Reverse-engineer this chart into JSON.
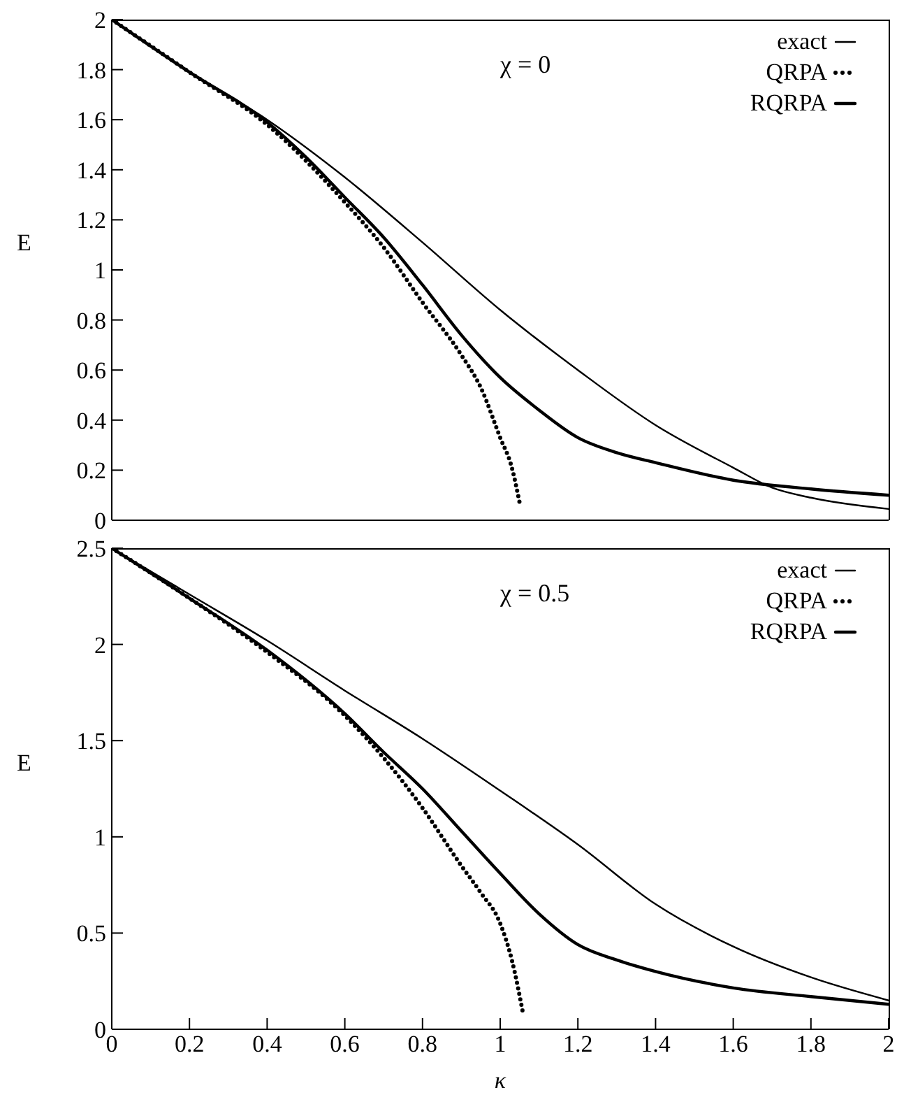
{
  "chart_data": [
    {
      "type": "line",
      "ylabel": "E",
      "annotations": [
        "χ = 0"
      ],
      "xlim": [
        0,
        2
      ],
      "xticks": [
        0,
        0.2,
        0.4,
        0.6,
        0.8,
        1,
        1.2,
        1.4,
        1.6,
        1.8,
        2
      ],
      "ylim": [
        0,
        2
      ],
      "yticks": [
        0,
        0.2,
        0.4,
        0.6,
        0.8,
        1,
        1.2,
        1.4,
        1.6,
        1.8,
        2
      ],
      "tick_labels": "y",
      "legend": "top right",
      "series": [
        {
          "name": "exact",
          "color": "#000000",
          "line_style": "solid",
          "x": [
            0,
            0.2,
            0.4,
            0.6,
            0.8,
            1,
            1.2,
            1.4,
            1.6,
            1.7,
            1.8,
            2
          ],
          "values": [
            2,
            1.79,
            1.6,
            1.37,
            1.11,
            0.84,
            0.6,
            0.38,
            0.21,
            0.13,
            0.09,
            0.045
          ]
        },
        {
          "name": "QRPA",
          "color": "#000000",
          "line_style": "dotted",
          "x": [
            0,
            0.2,
            0.4,
            0.6,
            0.7,
            0.8,
            0.9,
            0.95,
            1,
            1.03,
            1.05
          ],
          "values": [
            2,
            1.79,
            1.58,
            1.27,
            1.09,
            0.87,
            0.66,
            0.53,
            0.33,
            0.21,
            0.07
          ]
        },
        {
          "name": "RQRPA",
          "color": "#000000",
          "line_style": "solid",
          "x": [
            0,
            0.2,
            0.4,
            0.5,
            0.6,
            0.7,
            0.8,
            0.9,
            1,
            1.1,
            1.2,
            1.3,
            1.4,
            1.6,
            1.8,
            2
          ],
          "values": [
            2,
            1.79,
            1.59,
            1.45,
            1.29,
            1.13,
            0.94,
            0.74,
            0.57,
            0.44,
            0.33,
            0.27,
            0.23,
            0.16,
            0.125,
            0.1
          ]
        }
      ]
    },
    {
      "type": "line",
      "ylabel": "E",
      "xlabel": "κ",
      "annotations": [
        "χ = 0.5"
      ],
      "xlim": [
        0,
        2
      ],
      "xticks": [
        0,
        0.2,
        0.4,
        0.6,
        0.8,
        1,
        1.2,
        1.4,
        1.6,
        1.8,
        2
      ],
      "ylim": [
        0,
        2.5
      ],
      "yticks": [
        0,
        0.5,
        1,
        1.5,
        2,
        2.5
      ],
      "legend": "top right",
      "series": [
        {
          "name": "exact",
          "color": "#000000",
          "line_style": "solid",
          "x": [
            0,
            0.2,
            0.4,
            0.6,
            0.8,
            1,
            1.2,
            1.4,
            1.6,
            1.8,
            2
          ],
          "values": [
            2.5,
            2.26,
            2.02,
            1.76,
            1.51,
            1.24,
            0.96,
            0.65,
            0.43,
            0.27,
            0.15
          ]
        },
        {
          "name": "QRPA",
          "color": "#000000",
          "line_style": "dotted",
          "x": [
            0,
            0.2,
            0.4,
            0.6,
            0.7,
            0.8,
            0.9,
            0.95,
            1,
            1.03,
            1.06
          ],
          "values": [
            2.5,
            2.24,
            1.96,
            1.63,
            1.41,
            1.15,
            0.85,
            0.71,
            0.55,
            0.36,
            0.07
          ]
        },
        {
          "name": "RQRPA",
          "color": "#000000",
          "line_style": "solid",
          "x": [
            0,
            0.2,
            0.4,
            0.6,
            0.7,
            0.8,
            0.9,
            1,
            1.1,
            1.2,
            1.3,
            1.4,
            1.6,
            1.8,
            2
          ],
          "values": [
            2.5,
            2.24,
            1.97,
            1.64,
            1.44,
            1.25,
            1.03,
            0.81,
            0.6,
            0.44,
            0.36,
            0.3,
            0.215,
            0.17,
            0.13
          ]
        }
      ]
    }
  ]
}
